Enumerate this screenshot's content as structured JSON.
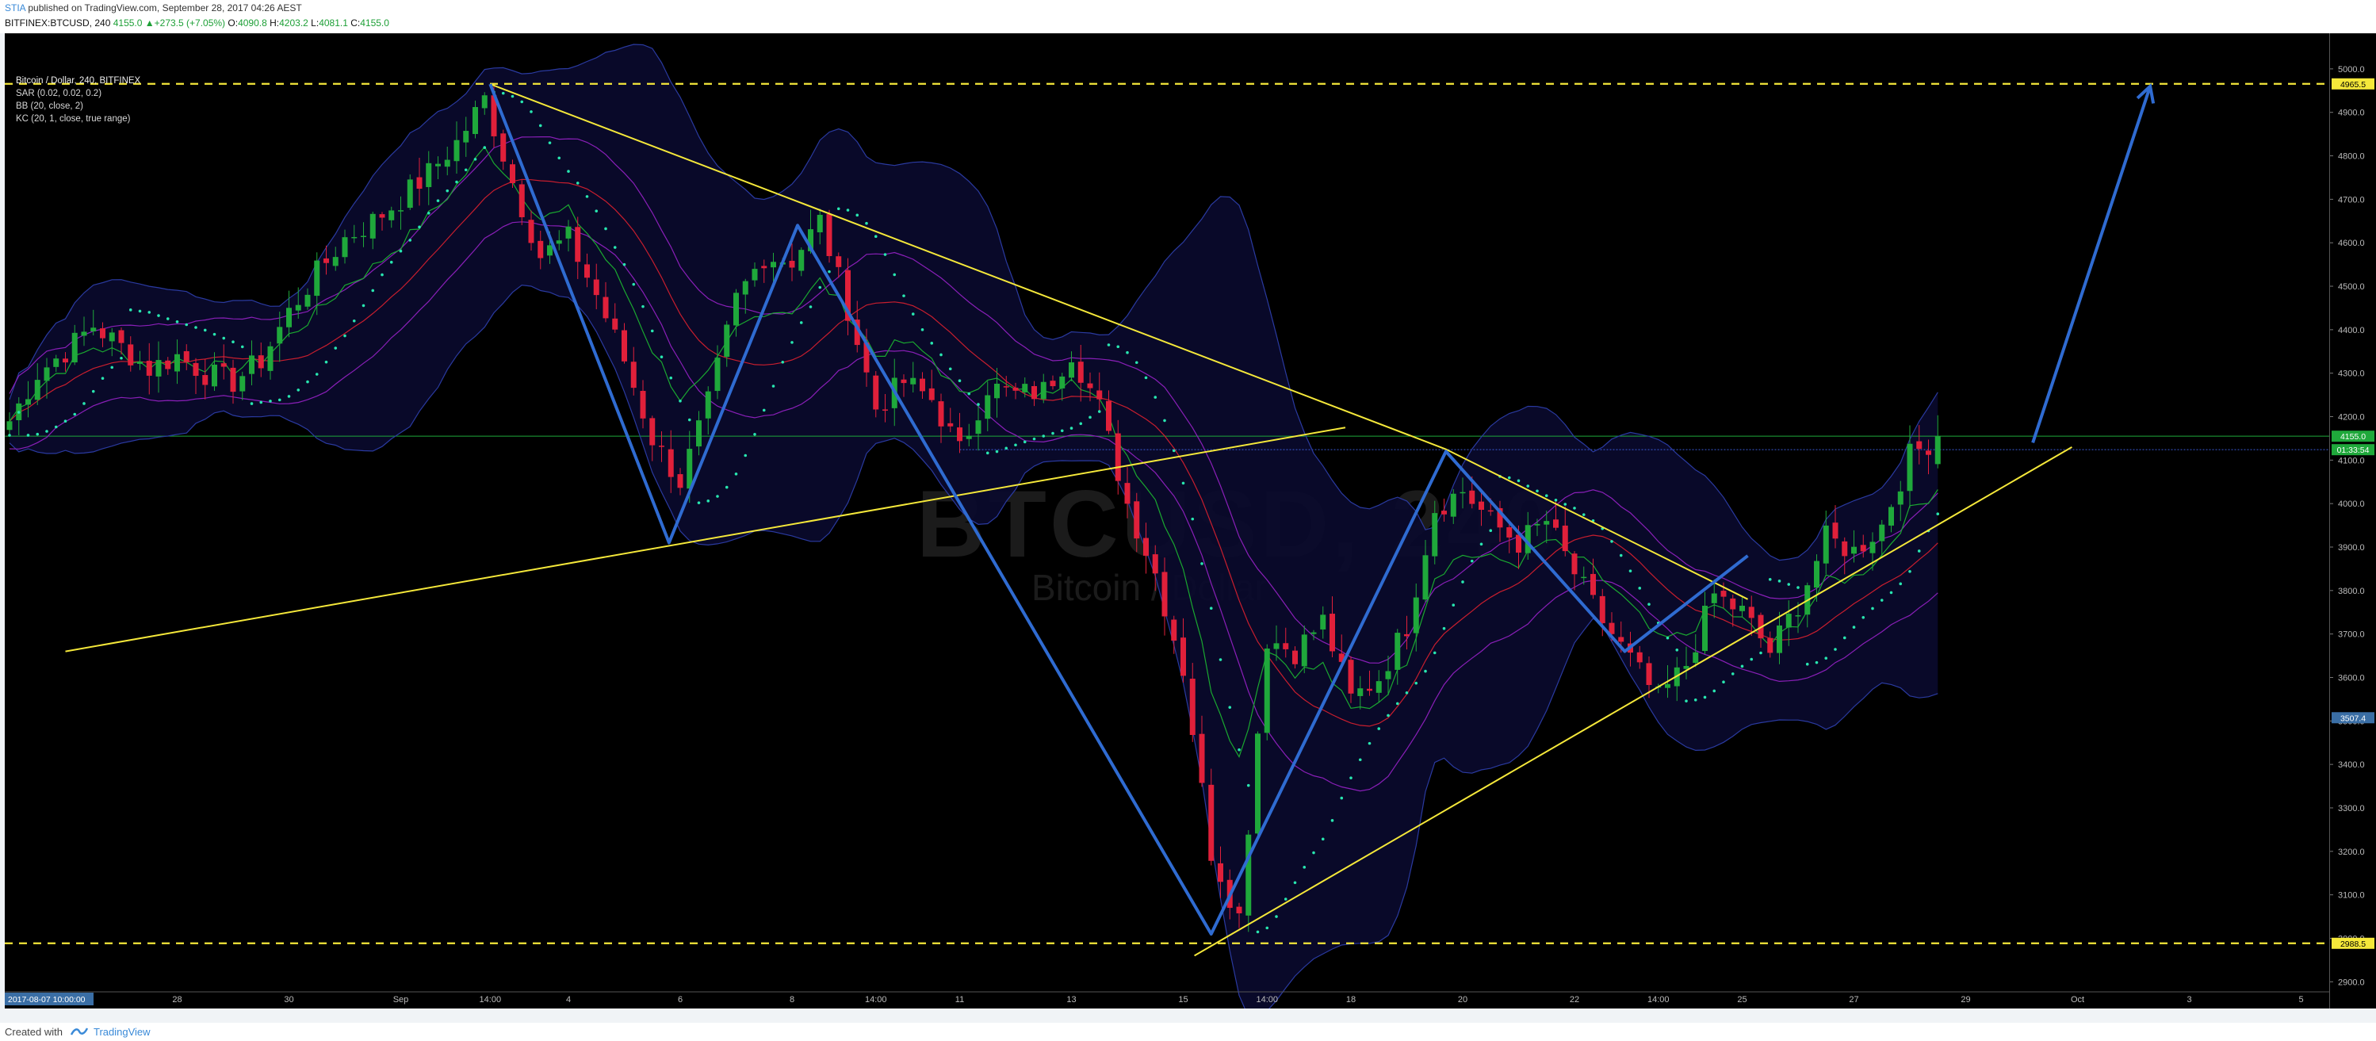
{
  "header": {
    "author": "STIA",
    "published": " published on TradingView.com, September 28, 2017 04:26 AEST",
    "symbol_line": "BITFINEX:BTCUSD, 240",
    "last": "4155.0",
    "change": "+273.5 (+7.05%)",
    "o_label": "O:",
    "o_value": "4090.8",
    "h_label": "H:",
    "h_value": "4203.2",
    "l_label": "L:",
    "l_value": "4081.1",
    "c_label": "C:",
    "c_value": "4155.0"
  },
  "legend": {
    "title": "Bitcoin / Dollar, 240, BITFINEX",
    "sar": "SAR (0.02, 0.02, 0.2)",
    "bb": "BB (20, close, 2)",
    "kc": "KC (20, 1, close, true range)"
  },
  "watermark": {
    "big": "BTCUSD, 240",
    "small": "Bitcoin / Dollar"
  },
  "footer": {
    "created": "Created with",
    "brand": "TradingView"
  },
  "colors": {
    "up": "#1fa83b",
    "down": "#e0203a",
    "pattern": "#2f6bd1",
    "trend": "#f5e83a",
    "bb_band": "#2a3aa0",
    "kc_band": "#8a1fb8",
    "bb_basis": "#c81e2e",
    "kc_basis": "#1aa830",
    "sar": "#28e6b0"
  },
  "chart_data": {
    "type": "candlestick",
    "title": "Bitcoin / Dollar, 240, BITFINEX",
    "ylim": [
      2850,
      5050
    ],
    "y_ticks": [
      2900,
      3000,
      3100,
      3200,
      3300,
      3400,
      3500,
      3600,
      3700,
      3800,
      3900,
      4000,
      4100,
      4200,
      4300,
      4400,
      4500,
      4600,
      4700,
      4800,
      4900,
      5000
    ],
    "x_ticks": [
      {
        "day": 7,
        "label": "2017-08-07 10:00:00",
        "highlight": true
      },
      {
        "day": 23.4,
        "label": "14:00"
      },
      {
        "day": 28,
        "label": "28"
      },
      {
        "day": 30,
        "label": "30"
      },
      {
        "day": 32,
        "label": "Sep"
      },
      {
        "day": 33.6,
        "label": "14:00"
      },
      {
        "day": 35,
        "label": "4"
      },
      {
        "day": 37,
        "label": "6"
      },
      {
        "day": 39,
        "label": "8"
      },
      {
        "day": 40.5,
        "label": "14:00"
      },
      {
        "day": 42,
        "label": "11"
      },
      {
        "day": 44,
        "label": "13"
      },
      {
        "day": 46,
        "label": "15"
      },
      {
        "day": 47.5,
        "label": "14:00"
      },
      {
        "day": 49,
        "label": "18"
      },
      {
        "day": 51,
        "label": "20"
      },
      {
        "day": 53,
        "label": "22"
      },
      {
        "day": 54.5,
        "label": "14:00"
      },
      {
        "day": 56,
        "label": "25"
      },
      {
        "day": 58,
        "label": "27"
      },
      {
        "day": 60,
        "label": "29"
      },
      {
        "day": 62,
        "label": "Oct"
      },
      {
        "day": 64,
        "label": "3"
      },
      {
        "day": 66,
        "label": "5"
      }
    ],
    "price_labels": [
      {
        "value": 4965.5,
        "text": "4965.5",
        "style": "yellow"
      },
      {
        "value": 4155.0,
        "text": "4155.0",
        "style": "green"
      },
      {
        "value": 4124.0,
        "text": "01:33:54",
        "style": "green"
      },
      {
        "value": 3507.4,
        "text": "3507.4",
        "style": "blue"
      },
      {
        "value": 2988.5,
        "text": "2988.5",
        "style": "yellow"
      }
    ],
    "series": [
      {
        "name": "BITFINEX:BTCUSD, 240",
        "close": [
          [
            25.0,
            4190
          ],
          [
            25.5,
            4300
          ],
          [
            26.0,
            4350
          ],
          [
            26.5,
            4410
          ],
          [
            27.0,
            4360
          ],
          [
            27.5,
            4310
          ],
          [
            28.0,
            4340
          ],
          [
            28.5,
            4300
          ],
          [
            29.0,
            4280
          ],
          [
            29.5,
            4330
          ],
          [
            30.0,
            4440
          ],
          [
            30.5,
            4530
          ],
          [
            31.0,
            4610
          ],
          [
            31.5,
            4650
          ],
          [
            32.0,
            4700
          ],
          [
            32.5,
            4760
          ],
          [
            33.0,
            4830
          ],
          [
            33.5,
            4930
          ],
          [
            34.0,
            4740
          ],
          [
            34.5,
            4570
          ],
          [
            35.0,
            4610
          ],
          [
            35.5,
            4480
          ],
          [
            36.0,
            4330
          ],
          [
            36.5,
            4150
          ],
          [
            37.0,
            4050
          ],
          [
            37.5,
            4230
          ],
          [
            38.0,
            4470
          ],
          [
            38.5,
            4570
          ],
          [
            39.0,
            4560
          ],
          [
            39.5,
            4650
          ],
          [
            40.0,
            4450
          ],
          [
            40.5,
            4220
          ],
          [
            41.0,
            4280
          ],
          [
            41.5,
            4240
          ],
          [
            42.0,
            4120
          ],
          [
            42.5,
            4270
          ],
          [
            43.0,
            4250
          ],
          [
            43.5,
            4260
          ],
          [
            44.0,
            4350
          ],
          [
            44.5,
            4220
          ],
          [
            45.0,
            4000
          ],
          [
            45.5,
            3840
          ],
          [
            46.0,
            3620
          ],
          [
            46.5,
            3200
          ],
          [
            47.0,
            3050
          ],
          [
            47.5,
            3690
          ],
          [
            48.0,
            3660
          ],
          [
            48.5,
            3730
          ],
          [
            49.0,
            3550
          ],
          [
            49.5,
            3600
          ],
          [
            50.0,
            3720
          ],
          [
            50.5,
            3990
          ],
          [
            51.0,
            4030
          ],
          [
            51.5,
            3960
          ],
          [
            52.0,
            3910
          ],
          [
            52.5,
            3960
          ],
          [
            53.0,
            3840
          ],
          [
            53.5,
            3730
          ],
          [
            54.0,
            3640
          ],
          [
            54.5,
            3550
          ],
          [
            55.0,
            3630
          ],
          [
            55.5,
            3790
          ],
          [
            56.0,
            3750
          ],
          [
            56.5,
            3660
          ],
          [
            57.0,
            3770
          ],
          [
            57.5,
            3920
          ],
          [
            58.0,
            3890
          ],
          [
            58.5,
            3950
          ],
          [
            59.0,
            4110
          ],
          [
            59.5,
            4155
          ]
        ]
      },
      {
        "name": "SAR (0.02, 0.02, 0.2)"
      },
      {
        "name": "BB (20, close, 2)"
      },
      {
        "name": "KC (20, 1, close, true range)"
      }
    ],
    "annotations": {
      "horizontal_dashed": [
        4965.5,
        2988.5
      ],
      "zigzag": [
        [
          33.6,
          4965
        ],
        [
          36.8,
          3910
        ],
        [
          39.1,
          4640
        ],
        [
          46.5,
          3010
        ],
        [
          50.7,
          4120
        ],
        [
          53.9,
          3660
        ],
        [
          56.1,
          3880
        ]
      ],
      "zigzag_right": [
        [
          53.9,
          3660
        ],
        [
          56.1,
          3880
        ]
      ],
      "projection_arrow": [
        [
          61.2,
          4140
        ],
        [
          63.3,
          4960
        ]
      ],
      "trendlines": [
        [
          [
            26.0,
            3660
          ],
          [
            48.9,
            4175
          ]
        ],
        [
          [
            33.6,
            4965
          ],
          [
            50.7,
            4125
          ],
          [
            56.1,
            3780
          ]
        ],
        [
          [
            46.2,
            2960
          ],
          [
            61.9,
            4130
          ]
        ]
      ]
    }
  }
}
